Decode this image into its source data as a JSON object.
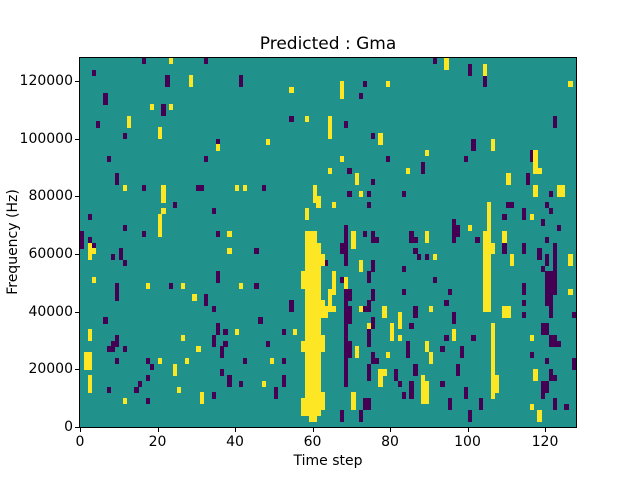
{
  "chart_data": {
    "type": "heatmap",
    "title": "Predicted : Gma",
    "xlabel": "Time step",
    "ylabel": "Frequency (Hz)",
    "x_ticks": [
      0,
      20,
      40,
      60,
      80,
      100,
      120
    ],
    "y_ticks": [
      0,
      20000,
      40000,
      60000,
      80000,
      100000,
      120000
    ],
    "x_range": [
      0,
      128
    ],
    "y_range": [
      0,
      128000
    ],
    "grid": {
      "cols": 128,
      "rows": 64,
      "freq_bin_hz": 2000
    },
    "legend": "none",
    "colors": {
      "background": "#21918c",
      "low": "#440154",
      "high": "#fde725"
    },
    "cells": {
      "yellow": [
        [
          23,
          63
        ],
        [
          28,
          59,
          60
        ],
        [
          18,
          55
        ],
        [
          23,
          55
        ],
        [
          12,
          52,
          53
        ],
        [
          20,
          50,
          51
        ],
        [
          11,
          41
        ],
        [
          21,
          39,
          41
        ],
        [
          20,
          33,
          36
        ],
        [
          21,
          37
        ],
        [
          2,
          29,
          31
        ],
        [
          3,
          30
        ],
        [
          3,
          25
        ],
        [
          17,
          24
        ],
        [
          26,
          24
        ],
        [
          29,
          22
        ],
        [
          2,
          15,
          16
        ],
        [
          26,
          15
        ],
        [
          30,
          13
        ],
        [
          1,
          10,
          12
        ],
        [
          2,
          10,
          12
        ],
        [
          20,
          11
        ],
        [
          27,
          11
        ],
        [
          24,
          9,
          10
        ],
        [
          2,
          6,
          8
        ],
        [
          25,
          6
        ],
        [
          11,
          4
        ],
        [
          31,
          4,
          5
        ],
        [
          54,
          58
        ],
        [
          58,
          53
        ],
        [
          35,
          48
        ],
        [
          48,
          49
        ],
        [
          40,
          41
        ],
        [
          42,
          41
        ],
        [
          58,
          36,
          37
        ],
        [
          38,
          33
        ],
        [
          57,
          2,
          4
        ],
        [
          57,
          13,
          14
        ],
        [
          57,
          24,
          26
        ],
        [
          58,
          2,
          33
        ],
        [
          59,
          1,
          33
        ],
        [
          60,
          1,
          33
        ],
        [
          61,
          2,
          31
        ],
        [
          60,
          39,
          41
        ],
        [
          61,
          38,
          39
        ],
        [
          62,
          3,
          5
        ],
        [
          62,
          13,
          15
        ],
        [
          62,
          19,
          21
        ],
        [
          62,
          28,
          29
        ],
        [
          63,
          19,
          20
        ],
        [
          38,
          30
        ],
        [
          41,
          24
        ],
        [
          40,
          16
        ],
        [
          55,
          16
        ],
        [
          49,
          11
        ],
        [
          47,
          7
        ],
        [
          68,
          24,
          25
        ],
        [
          94,
          62,
          63
        ],
        [
          67,
          57,
          59
        ],
        [
          79,
          59
        ],
        [
          64,
          50,
          53
        ],
        [
          77,
          49,
          50
        ],
        [
          67,
          46
        ],
        [
          89,
          47
        ],
        [
          64,
          44
        ],
        [
          84,
          44
        ],
        [
          71,
          42,
          43
        ],
        [
          72,
          40
        ],
        [
          65,
          38
        ],
        [
          70,
          31,
          33
        ],
        [
          89,
          32,
          33
        ],
        [
          91,
          29
        ],
        [
          72,
          27,
          28
        ],
        [
          65,
          23,
          26
        ],
        [
          64,
          20,
          23
        ],
        [
          65,
          20
        ],
        [
          72,
          20
        ],
        [
          78,
          19,
          20
        ],
        [
          90,
          20
        ],
        [
          82,
          17,
          19
        ],
        [
          80,
          15,
          17
        ],
        [
          82,
          15
        ],
        [
          89,
          13,
          14
        ],
        [
          71,
          12,
          13
        ],
        [
          79,
          12
        ],
        [
          90,
          11,
          12
        ],
        [
          74,
          17
        ],
        [
          77,
          7,
          9
        ],
        [
          78,
          9
        ],
        [
          88,
          4,
          8
        ],
        [
          89,
          4,
          7
        ],
        [
          70,
          3,
          5
        ],
        [
          104,
          61,
          62
        ],
        [
          126,
          59
        ],
        [
          106,
          48,
          49
        ],
        [
          117,
          44,
          47
        ],
        [
          118,
          44
        ],
        [
          110,
          42,
          43
        ],
        [
          117,
          40,
          41
        ],
        [
          123,
          40,
          41
        ],
        [
          124,
          40,
          41
        ],
        [
          100,
          34
        ],
        [
          116,
          36
        ],
        [
          109,
          32,
          33
        ],
        [
          104,
          20,
          33
        ],
        [
          105,
          20,
          38
        ],
        [
          106,
          30,
          31
        ],
        [
          106,
          5,
          17
        ],
        [
          107,
          6,
          8
        ],
        [
          109,
          19,
          20
        ],
        [
          110,
          19,
          20
        ],
        [
          111,
          28,
          29
        ],
        [
          96,
          15,
          16
        ],
        [
          116,
          15
        ],
        [
          116,
          3
        ],
        [
          117,
          8,
          9
        ],
        [
          118,
          1,
          2
        ],
        [
          126,
          28,
          29
        ],
        [
          126,
          23
        ]
      ],
      "purple": [
        [
          3,
          61
        ],
        [
          16,
          63
        ],
        [
          22,
          59,
          60
        ],
        [
          6,
          56,
          57
        ],
        [
          21,
          54,
          55
        ],
        [
          4,
          52
        ],
        [
          11,
          50
        ],
        [
          7,
          46
        ],
        [
          9,
          42,
          43
        ],
        [
          16,
          41
        ],
        [
          30,
          41
        ],
        [
          31,
          41
        ],
        [
          24,
          38
        ],
        [
          2,
          36
        ],
        [
          11,
          34
        ],
        [
          0,
          32,
          33
        ],
        [
          2,
          32
        ],
        [
          16,
          33
        ],
        [
          0,
          31
        ],
        [
          3,
          31
        ],
        [
          8,
          29
        ],
        [
          10,
          29,
          30
        ],
        [
          11,
          28
        ],
        [
          9,
          22,
          24
        ],
        [
          23,
          24
        ],
        [
          6,
          18
        ],
        [
          9,
          14,
          15
        ],
        [
          7,
          13
        ],
        [
          8,
          13,
          14
        ],
        [
          11,
          13
        ],
        [
          9,
          11
        ],
        [
          17,
          11
        ],
        [
          18,
          10
        ],
        [
          17,
          8
        ],
        [
          7,
          6
        ],
        [
          14,
          6
        ],
        [
          15,
          7
        ],
        [
          17,
          4
        ],
        [
          32,
          63
        ],
        [
          41,
          59,
          60
        ],
        [
          54,
          53
        ],
        [
          35,
          49
        ],
        [
          32,
          46
        ],
        [
          47,
          41
        ],
        [
          34,
          37
        ],
        [
          35,
          33
        ],
        [
          63,
          28
        ],
        [
          45,
          30
        ],
        [
          35,
          25,
          26
        ],
        [
          45,
          24
        ],
        [
          32,
          21,
          22
        ],
        [
          34,
          20
        ],
        [
          54,
          20,
          21
        ],
        [
          46,
          18
        ],
        [
          35,
          16,
          17
        ],
        [
          37,
          16
        ],
        [
          52,
          16
        ],
        [
          34,
          14,
          15
        ],
        [
          37,
          14
        ],
        [
          48,
          14
        ],
        [
          36,
          12,
          13
        ],
        [
          42,
          11
        ],
        [
          52,
          11
        ],
        [
          36,
          9
        ],
        [
          38,
          7,
          8
        ],
        [
          41,
          7
        ],
        [
          52,
          7,
          8
        ],
        [
          50,
          5,
          6
        ],
        [
          34,
          5
        ],
        [
          91,
          63
        ],
        [
          73,
          59
        ],
        [
          72,
          57
        ],
        [
          68,
          52
        ],
        [
          75,
          50
        ],
        [
          79,
          46
        ],
        [
          88,
          44,
          45
        ],
        [
          69,
          44
        ],
        [
          75,
          42
        ],
        [
          69,
          40
        ],
        [
          83,
          40
        ],
        [
          74,
          38
        ],
        [
          74,
          40
        ],
        [
          85,
          32,
          33
        ],
        [
          86,
          32
        ],
        [
          73,
          33
        ],
        [
          75,
          32,
          33
        ],
        [
          76,
          32
        ],
        [
          68,
          7,
          23
        ],
        [
          68,
          28,
          34
        ],
        [
          69,
          12,
          14
        ],
        [
          69,
          18,
          20
        ],
        [
          69,
          22,
          23
        ],
        [
          74,
          8,
          10
        ],
        [
          74,
          14,
          16
        ],
        [
          74,
          20,
          21
        ],
        [
          74,
          25,
          26
        ],
        [
          75,
          11,
          12
        ],
        [
          75,
          17,
          18
        ],
        [
          75,
          22,
          23
        ],
        [
          75,
          27,
          28
        ],
        [
          73,
          20
        ],
        [
          67,
          30,
          31
        ],
        [
          67,
          25
        ],
        [
          86,
          30
        ],
        [
          87,
          29
        ],
        [
          89,
          29
        ],
        [
          83,
          27
        ],
        [
          91,
          25
        ],
        [
          95,
          23
        ],
        [
          83,
          23
        ],
        [
          94,
          21
        ],
        [
          86,
          19,
          20
        ],
        [
          85,
          17
        ],
        [
          94,
          15
        ],
        [
          93,
          13
        ],
        [
          84,
          12,
          14
        ],
        [
          86,
          9,
          10
        ],
        [
          81,
          8,
          9
        ],
        [
          82,
          7
        ],
        [
          83,
          5
        ],
        [
          85,
          5,
          7
        ],
        [
          93,
          7
        ],
        [
          95,
          3,
          4
        ],
        [
          73,
          3,
          4
        ],
        [
          74,
          3,
          4
        ],
        [
          72,
          1,
          2
        ],
        [
          67,
          1,
          2
        ],
        [
          76,
          11
        ],
        [
          100,
          61,
          62
        ],
        [
          104,
          59,
          60
        ],
        [
          122,
          52,
          53
        ],
        [
          101,
          48,
          49
        ],
        [
          99,
          46
        ],
        [
          116,
          46,
          47
        ],
        [
          115,
          42,
          43
        ],
        [
          121,
          40
        ],
        [
          120,
          38
        ],
        [
          110,
          38
        ],
        [
          111,
          38
        ],
        [
          109,
          36
        ],
        [
          114,
          36,
          37
        ],
        [
          121,
          37
        ],
        [
          96,
          32,
          35
        ],
        [
          97,
          33,
          34
        ],
        [
          102,
          32
        ],
        [
          119,
          35
        ],
        [
          123,
          34
        ],
        [
          120,
          32
        ],
        [
          96,
          18,
          19
        ],
        [
          101,
          15
        ],
        [
          98,
          12,
          13
        ],
        [
          97,
          9,
          10
        ],
        [
          99,
          5,
          6
        ],
        [
          103,
          3,
          4
        ],
        [
          100,
          1,
          2
        ],
        [
          109,
          30,
          31
        ],
        [
          114,
          30,
          31
        ],
        [
          114,
          23,
          24
        ],
        [
          114,
          21
        ],
        [
          114,
          19
        ],
        [
          116,
          12
        ],
        [
          127,
          19
        ],
        [
          127,
          10,
          11
        ],
        [
          125,
          3
        ],
        [
          122,
          26,
          31
        ],
        [
          118,
          29,
          30
        ],
        [
          119,
          27
        ],
        [
          120,
          28,
          29
        ],
        [
          120,
          23,
          26
        ],
        [
          121,
          23,
          26
        ],
        [
          122,
          23,
          25
        ],
        [
          121,
          19,
          22
        ],
        [
          120,
          21,
          22
        ],
        [
          119,
          16,
          17
        ],
        [
          120,
          16,
          17
        ],
        [
          121,
          14,
          15
        ],
        [
          122,
          14,
          15
        ],
        [
          123,
          14
        ],
        [
          120,
          11
        ],
        [
          121,
          8,
          9
        ],
        [
          122,
          8
        ],
        [
          119,
          5,
          7
        ],
        [
          120,
          6,
          7
        ],
        [
          122,
          3,
          4
        ]
      ]
    }
  }
}
